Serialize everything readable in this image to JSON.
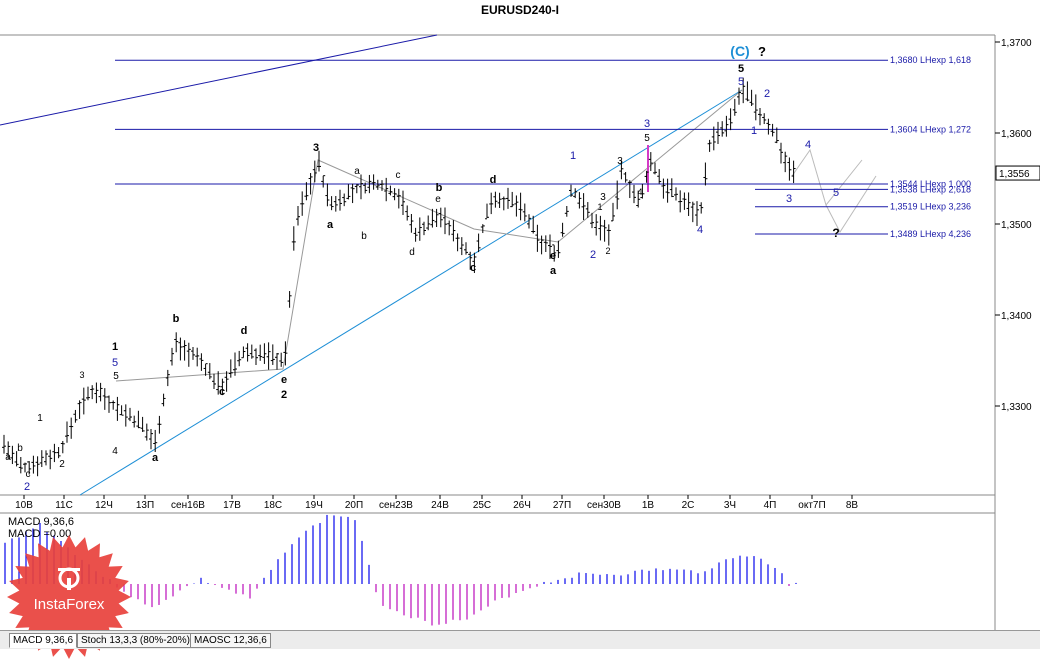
{
  "chart_data": {
    "type": "candlestick",
    "title": "EURUSD240-I",
    "y_ticks": [
      "1,3700",
      "1,3600",
      "1,3500",
      "1,3400",
      "1,3300"
    ],
    "current_price": "1,3556",
    "x_ticks": [
      "10В",
      "11С",
      "12Ч",
      "13П",
      "сен16В",
      "17В",
      "18С",
      "19Ч",
      "20П",
      "сен23В",
      "24В",
      "25С",
      "26Ч",
      "27П",
      "сен30В",
      "1В",
      "2С",
      "3Ч",
      "4П",
      "окт7П",
      "8В"
    ],
    "levels": [
      {
        "price": 1.368,
        "label": "1,3680 LHexp 1,618"
      },
      {
        "price": 1.3604,
        "label": "1,3604 LHexp 1,272"
      },
      {
        "price": 1.3544,
        "label": "1,3544 LHexp 1,000"
      },
      {
        "price": 1.3538,
        "label": "1,3538 LHexp 2,618"
      },
      {
        "price": 1.3519,
        "label": "1,3519 LHexp 3,236"
      },
      {
        "price": 1.3489,
        "label": "1,3489 LHexp 4,236"
      }
    ],
    "wave_labels": [
      "(C)",
      "?",
      "5",
      "5",
      "2",
      "1",
      "3",
      "4",
      "5",
      "?",
      "3",
      "5",
      "1",
      "3",
      "1",
      "2",
      "2",
      "4",
      "4",
      "b",
      "d",
      "a",
      "c",
      "e",
      "3",
      "a",
      "b",
      "c",
      "d",
      "e",
      "b",
      "d",
      "a",
      "c",
      "e",
      "2",
      "1",
      "5",
      "5",
      "3",
      "4",
      "a",
      "b",
      "1",
      "c",
      "2",
      "2",
      "3",
      "a"
    ],
    "indicator": {
      "name": "MACD 9,36,6",
      "value_label": "MACD =0.00"
    }
  },
  "tabs": [
    {
      "label": "MACD 9,36,6"
    },
    {
      "label": "Stoch 13,3,3 (80%-20%)"
    },
    {
      "label": "MAOSC 12,36,6"
    }
  ],
  "brand": {
    "name": "InstaForex"
  }
}
